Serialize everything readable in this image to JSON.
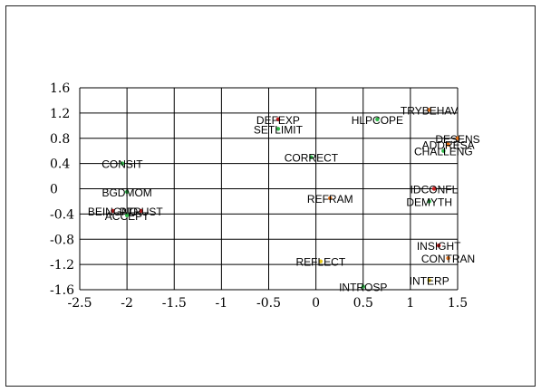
{
  "chart_data": {
    "type": "scatter",
    "title": "",
    "xlabel": "",
    "ylabel": "",
    "xlim": [
      -2.5,
      1.5
    ],
    "ylim": [
      -1.6,
      1.6
    ],
    "x_ticks": [
      -2.5,
      -2,
      -1.5,
      -1,
      -0.5,
      0,
      0.5,
      1,
      1.5
    ],
    "x_tick_labels": [
      "-2.5",
      "-2",
      "-1.5",
      "-1",
      "-0.5",
      "0",
      "0.5",
      "1",
      "1.5"
    ],
    "y_ticks": [
      1.6,
      1.2,
      0.8,
      0.4,
      0,
      -0.4,
      -0.8,
      -1.2,
      -1.6
    ],
    "y_tick_labels": [
      "1.6",
      "1.2",
      "0.8",
      "0.4",
      "0",
      "-0.4",
      "-0.8",
      "-1.2",
      "-1.6"
    ],
    "grid": true,
    "points": [
      {
        "label": "TRYBEHAV",
        "x": 1.2,
        "y": 1.25,
        "color": "#e8731a"
      },
      {
        "label": "HLPCOPE",
        "x": 0.65,
        "y": 1.1,
        "color": "#2fb84a"
      },
      {
        "label": "DEFEXP",
        "x": -0.4,
        "y": 1.1,
        "color": "#cc2020"
      },
      {
        "label": "SETLIMIT",
        "x": -0.4,
        "y": 0.95,
        "color": "#2fb84a"
      },
      {
        "label": "DESENS",
        "x": 1.5,
        "y": 0.8,
        "color": "#e8731a"
      },
      {
        "label": "ADDRESA",
        "x": 1.4,
        "y": 0.7,
        "color": "#e8731a"
      },
      {
        "label": "CHALLENG",
        "x": 1.35,
        "y": 0.6,
        "color": "#2fb84a"
      },
      {
        "label": "CORRECT",
        "x": -0.05,
        "y": 0.5,
        "color": "#2fb84a"
      },
      {
        "label": "CONSIT",
        "x": -2.05,
        "y": 0.4,
        "color": "#2fb84a"
      },
      {
        "label": "IDCONFL",
        "x": 1.25,
        "y": 0.0,
        "color": "#cc2020"
      },
      {
        "label": "BGDMOM",
        "x": -2.0,
        "y": -0.05,
        "color": "#2fb84a"
      },
      {
        "label": "REFRAM",
        "x": 0.15,
        "y": -0.15,
        "color": "#e8731a"
      },
      {
        "label": "DEMYTH",
        "x": 1.2,
        "y": -0.2,
        "color": "#2fb84a"
      },
      {
        "label": "BEINGNO",
        "x": -2.15,
        "y": -0.35,
        "color": "#cc2020"
      },
      {
        "label": "PTRUST",
        "x": -1.85,
        "y": -0.35,
        "color": "#cc2020"
      },
      {
        "label": "ACCEPT",
        "x": -2.0,
        "y": -0.42,
        "color": "#2fb84a"
      },
      {
        "label": "INSIGHT",
        "x": 1.3,
        "y": -0.9,
        "color": "#cc2020"
      },
      {
        "label": "CONTRAN",
        "x": 1.4,
        "y": -1.1,
        "color": "#e8731a"
      },
      {
        "label": "REFLECT",
        "x": 0.05,
        "y": -1.15,
        "color": "#e8c81a"
      },
      {
        "label": "INTERP",
        "x": 1.2,
        "y": -1.45,
        "color": "#e8c81a"
      },
      {
        "label": "INTROSP",
        "x": 0.5,
        "y": -1.55,
        "color": "#2fb84a"
      }
    ]
  }
}
